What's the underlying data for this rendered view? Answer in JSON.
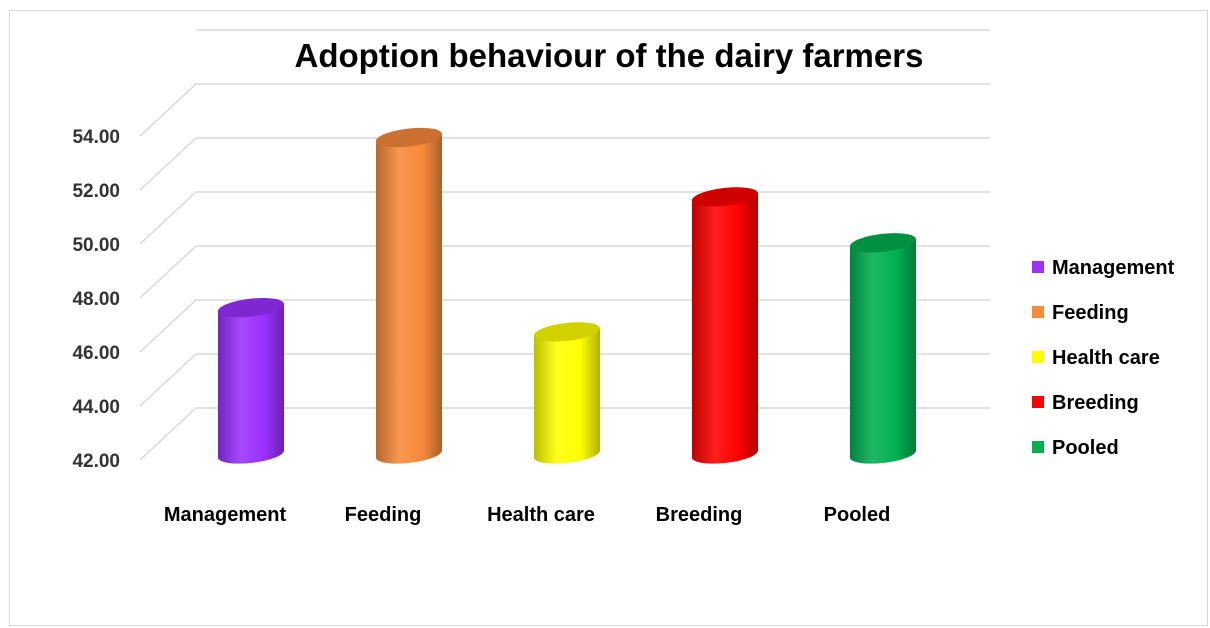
{
  "chart_data": {
    "type": "bar",
    "title": "Adoption behaviour of the dairy farmers",
    "xlabel": "",
    "ylabel": "",
    "categories": [
      "Management",
      "Feeding",
      "Health care",
      "Breeding",
      "Pooled"
    ],
    "values": [
      47.0,
      53.3,
      46.1,
      51.1,
      49.4
    ],
    "colors": [
      "#9b30ff",
      "#f7893a",
      "#ffff00",
      "#ff0000",
      "#00b050"
    ],
    "y_ticks": [
      "42.00",
      "44.00",
      "46.00",
      "48.00",
      "50.00",
      "52.00",
      "54.00"
    ],
    "ylim": [
      42,
      54
    ],
    "grid": true,
    "legend_position": "right",
    "bar_shape": "cylinder"
  }
}
